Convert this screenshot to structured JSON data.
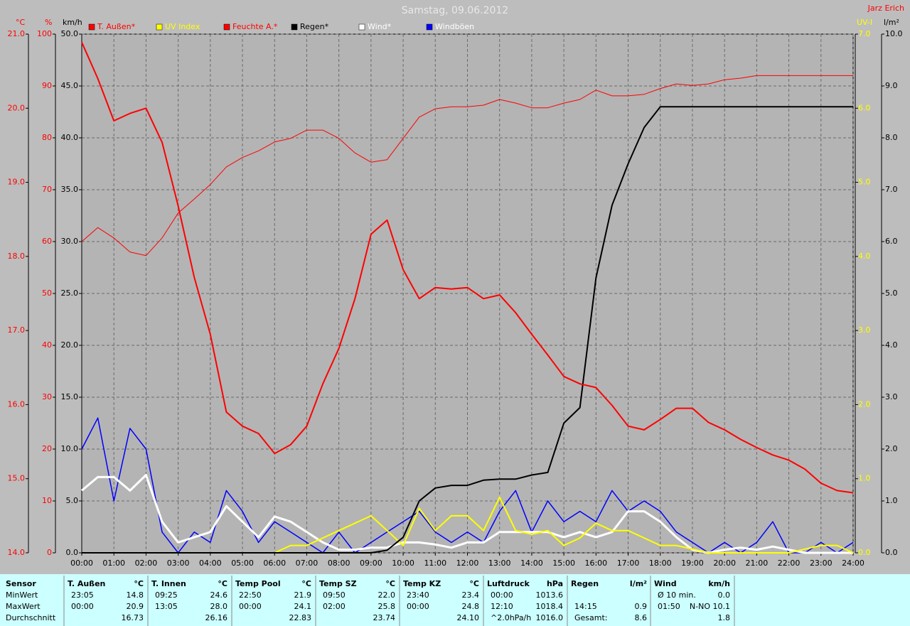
{
  "chart_data": {
    "type": "line",
    "title": "Samstag, 09.06.2012",
    "author": "Jarz Erich",
    "grid": true,
    "x": [
      0,
      0.5,
      1,
      1.5,
      2,
      2.5,
      3,
      3.5,
      4,
      4.5,
      5,
      5.5,
      6,
      6.5,
      7,
      7.5,
      8,
      8.5,
      9,
      9.5,
      10,
      10.5,
      11,
      11.5,
      12,
      12.5,
      13,
      13.5,
      14,
      14.5,
      15,
      15.5,
      16,
      16.5,
      17,
      17.5,
      18,
      18.5,
      19,
      19.5,
      20,
      20.5,
      21,
      21.5,
      22,
      22.5,
      23,
      23.5,
      24
    ],
    "xlim": [
      0,
      24
    ],
    "xticks": [
      {
        "value": 0,
        "label": "00:00"
      },
      {
        "value": 1,
        "label": "01:00"
      },
      {
        "value": 2,
        "label": "02:00"
      },
      {
        "value": 3,
        "label": "03:00"
      },
      {
        "value": 4,
        "label": "04:00"
      },
      {
        "value": 5,
        "label": "05:00"
      },
      {
        "value": 6,
        "label": "06:00"
      },
      {
        "value": 7,
        "label": "07:00"
      },
      {
        "value": 8,
        "label": "08:00"
      },
      {
        "value": 9,
        "label": "09:00"
      },
      {
        "value": 10,
        "label": "10:00"
      },
      {
        "value": 11,
        "label": "11:00"
      },
      {
        "value": 12,
        "label": "12:00"
      },
      {
        "value": 13,
        "label": "13:00"
      },
      {
        "value": 14,
        "label": "14:00"
      },
      {
        "value": 15,
        "label": "15:00"
      },
      {
        "value": 16,
        "label": "16:00"
      },
      {
        "value": 17,
        "label": "17:00"
      },
      {
        "value": 18,
        "label": "18:00"
      },
      {
        "value": 19,
        "label": "19:00"
      },
      {
        "value": 20,
        "label": "20:00"
      },
      {
        "value": 21,
        "label": "21:00"
      },
      {
        "value": 22,
        "label": "22:00"
      },
      {
        "value": 23,
        "label": "23:00"
      },
      {
        "value": 24,
        "label": "24:00"
      }
    ],
    "axes": [
      {
        "label": "°C",
        "color": "#ff0000",
        "ylim": [
          14,
          21
        ],
        "yticks": [
          {
            "value": 14,
            "label": "14.0"
          },
          {
            "value": 15,
            "label": "15.0"
          },
          {
            "value": 16,
            "label": "16.0"
          },
          {
            "value": 17,
            "label": "17.0"
          },
          {
            "value": 18,
            "label": "18.0"
          },
          {
            "value": 19,
            "label": "19.0"
          },
          {
            "value": 20,
            "label": "20.0"
          },
          {
            "value": 21,
            "label": "21.0"
          }
        ]
      },
      {
        "label": "%",
        "color": "#ff0000",
        "ylim": [
          0,
          100
        ],
        "yticks": [
          0,
          10,
          20,
          30,
          40,
          50,
          60,
          70,
          80,
          90,
          100
        ]
      },
      {
        "label": "km/h",
        "color": "#000000",
        "ylim": [
          0,
          50
        ],
        "yticks": [
          {
            "value": 0,
            "label": "0.0"
          },
          {
            "value": 5,
            "label": "5.0"
          },
          {
            "value": 10,
            "label": "10.0"
          },
          {
            "value": 15,
            "label": "15.0"
          },
          {
            "value": 20,
            "label": "20.0"
          },
          {
            "value": 25,
            "label": "25.0"
          },
          {
            "value": 30,
            "label": "30.0"
          },
          {
            "value": 35,
            "label": "35.0"
          },
          {
            "value": 40,
            "label": "40.0"
          },
          {
            "value": 45,
            "label": "45.0"
          },
          {
            "value": 50,
            "label": "50.0"
          }
        ]
      },
      {
        "label": "UV-I",
        "color": "#ffff00",
        "ylim": [
          0,
          7
        ],
        "yticks": [
          {
            "value": 0,
            "label": "0.0"
          },
          {
            "value": 1,
            "label": "1.0"
          },
          {
            "value": 2,
            "label": "2.0"
          },
          {
            "value": 3,
            "label": "3.0"
          },
          {
            "value": 4,
            "label": "4.0"
          },
          {
            "value": 5,
            "label": "5.0"
          },
          {
            "value": 6,
            "label": "6.0"
          },
          {
            "value": 7,
            "label": "7.0"
          }
        ]
      },
      {
        "label": "l/m²",
        "color": "#000000",
        "ylim": [
          0,
          10
        ],
        "yticks": [
          {
            "value": 0,
            "label": "0.0"
          },
          {
            "value": 1,
            "label": "1.0"
          },
          {
            "value": 2,
            "label": "2.0"
          },
          {
            "value": 3,
            "label": "3.0"
          },
          {
            "value": 4,
            "label": "4.0"
          },
          {
            "value": 5,
            "label": "5.0"
          },
          {
            "value": 6,
            "label": "6.0"
          },
          {
            "value": 7,
            "label": "7.0"
          },
          {
            "value": 8,
            "label": "8.0"
          },
          {
            "value": 9,
            "label": "9.0"
          },
          {
            "value": 10,
            "label": "10.0"
          }
        ]
      }
    ],
    "series": [
      {
        "name": "T. Außen*",
        "color": "#ff0000",
        "axis": 0,
        "values": [
          20.89,
          20.4,
          19.83,
          19.93,
          20.0,
          19.54,
          18.68,
          17.72,
          16.95,
          15.9,
          15.71,
          15.61,
          15.34,
          15.46,
          15.71,
          16.28,
          16.76,
          17.43,
          18.3,
          18.49,
          17.82,
          17.43,
          17.58,
          17.56,
          17.58,
          17.43,
          17.48,
          17.24,
          16.95,
          16.67,
          16.38,
          16.28,
          16.23,
          15.99,
          15.71,
          15.66,
          15.8,
          15.95,
          15.95,
          15.76,
          15.66,
          15.53,
          15.42,
          15.32,
          15.25,
          15.13,
          14.94,
          14.84,
          14.81
        ]
      },
      {
        "name": "UV Index",
        "color": "#ffff00",
        "axis": 3,
        "values": [
          0,
          0,
          0,
          0,
          0,
          0,
          0,
          0,
          0,
          0,
          0,
          0,
          0,
          0.1,
          0.1,
          0.2,
          0.3,
          0.4,
          0.5,
          0.3,
          0.1,
          0.6,
          0.3,
          0.5,
          0.5,
          0.3,
          0.75,
          0.3,
          0.25,
          0.3,
          0.1,
          0.2,
          0.4,
          0.3,
          0.3,
          0.2,
          0.1,
          0.1,
          0.05,
          0,
          0,
          0,
          0,
          0,
          0,
          0.05,
          0.1,
          0.1,
          0
        ]
      },
      {
        "name": "Feuchte A.*",
        "color": "#ff0000",
        "axis": 1,
        "values": [
          60,
          62.7,
          60.7,
          58,
          57.3,
          60.7,
          65.5,
          68.2,
          71,
          74.4,
          76.2,
          77.5,
          79.2,
          79.9,
          81.5,
          81.5,
          79.9,
          77.1,
          75.3,
          75.8,
          79.9,
          84,
          85.6,
          86,
          86,
          86.3,
          87.4,
          86.7,
          85.8,
          85.8,
          86.7,
          87.4,
          89.2,
          88.1,
          88.1,
          88.4,
          89.5,
          90.4,
          90.1,
          90.4,
          91.2,
          91.5,
          92,
          92,
          92,
          92,
          92,
          92,
          92
        ]
      },
      {
        "name": "Regen*",
        "color": "#000000",
        "axis": 4,
        "values": [
          0,
          0,
          0,
          0,
          0,
          0,
          0,
          0,
          0,
          0,
          0,
          0,
          0,
          0,
          0,
          0,
          0,
          0,
          0,
          0.05,
          0.3,
          1.0,
          1.25,
          1.3,
          1.3,
          1.4,
          1.42,
          1.42,
          1.5,
          1.55,
          2.5,
          2.8,
          5.3,
          6.7,
          7.5,
          8.2,
          8.6,
          8.6,
          8.6,
          8.6,
          8.6,
          8.6,
          8.6,
          8.6,
          8.6,
          8.6,
          8.6,
          8.6,
          8.6
        ]
      },
      {
        "name": "Wind*",
        "color": "#ffffff",
        "axis": 2,
        "values": [
          6,
          7.3,
          7.3,
          6,
          7.5,
          3,
          1,
          1.5,
          2,
          4.5,
          3,
          1.5,
          3.5,
          3,
          2,
          1,
          0.3,
          0.3,
          0.5,
          0.5,
          1,
          1,
          0.8,
          0.5,
          1,
          1,
          2,
          2,
          2,
          2,
          1.5,
          2,
          1.5,
          2,
          4,
          4,
          3,
          1.5,
          0.3,
          0,
          0.3,
          0.5,
          0.3,
          0.6,
          0.3,
          0,
          0,
          0,
          0
        ]
      },
      {
        "name": "Windböen",
        "color": "#0000ff",
        "axis": 2,
        "values": [
          10,
          13,
          5,
          12,
          10,
          2,
          0,
          2,
          1,
          6,
          4,
          1,
          3,
          2,
          1,
          0,
          2,
          0,
          1,
          2,
          3,
          4,
          2,
          1,
          2,
          1,
          4,
          6,
          2,
          5,
          3,
          4,
          3,
          6,
          4,
          5,
          4,
          2,
          1,
          0,
          1,
          0,
          1,
          3,
          0,
          0,
          1,
          0,
          1
        ]
      }
    ]
  },
  "summary": {
    "row_labels": [
      "Sensor",
      "MinWert",
      "MaxWert",
      "Durchschnitt"
    ],
    "blocks": [
      {
        "name": "T. Außen",
        "unit": "°C",
        "rows": [
          [
            "23:05",
            "14.8"
          ],
          [
            "00:00",
            "20.9"
          ],
          [
            "16.73"
          ]
        ]
      },
      {
        "name": "T. Innen",
        "unit": "°C",
        "rows": [
          [
            "09:25",
            "24.6"
          ],
          [
            "13:05",
            "28.0"
          ],
          [
            "26.16"
          ]
        ]
      },
      {
        "name": "Temp Pool",
        "unit": "°C",
        "rows": [
          [
            "22:50",
            "21.9"
          ],
          [
            "00:00",
            "24.1"
          ],
          [
            "22.83"
          ]
        ]
      },
      {
        "name": "Temp SZ",
        "unit": "°C",
        "rows": [
          [
            "09:50",
            "22.0"
          ],
          [
            "02:00",
            "25.8"
          ],
          [
            "23.74"
          ]
        ]
      },
      {
        "name": "Temp KZ",
        "unit": "°C",
        "rows": [
          [
            "23:40",
            "23.4"
          ],
          [
            "00:00",
            "24.8"
          ],
          [
            "24.10"
          ]
        ]
      },
      {
        "name": "Luftdruck",
        "unit": "hPa",
        "rows": [
          [
            "00:00",
            "1013.6"
          ],
          [
            "12:10",
            "1018.4"
          ],
          [
            "^2.0hPa/h",
            "1016.0"
          ]
        ]
      },
      {
        "name": "Regen",
        "unit": "l/m²",
        "rows": [
          [],
          [
            "14:15",
            "0.9"
          ],
          [
            "Gesamt:",
            "8.6"
          ]
        ]
      },
      {
        "name": "Wind",
        "unit": "km/h",
        "rows": [
          [
            "Ø 10 min.",
            "0.0"
          ],
          [
            "01:50",
            "N-NO 10.1"
          ],
          [
            "1.8"
          ]
        ]
      }
    ]
  }
}
